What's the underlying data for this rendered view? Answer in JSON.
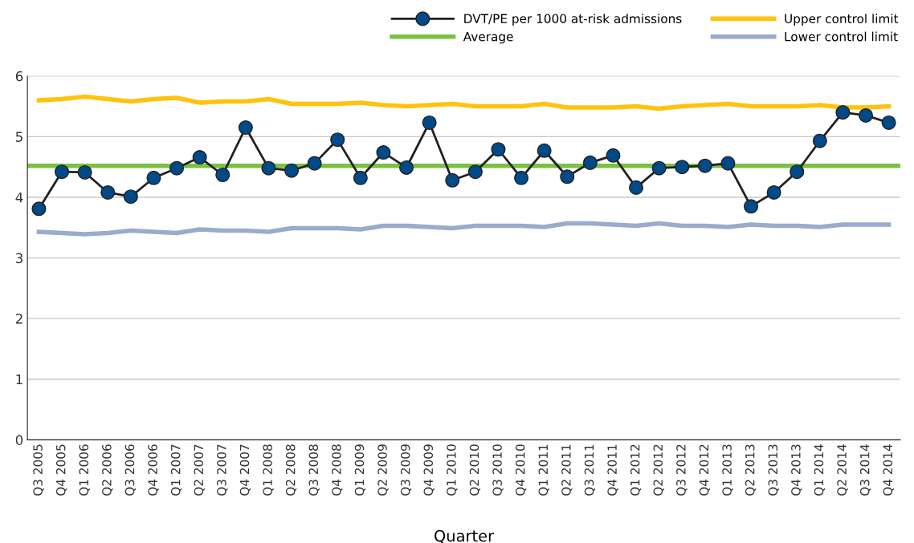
{
  "chart_data": {
    "type": "line",
    "xlabel": "Quarter",
    "categories": [
      "Q3 2005",
      "Q4 2005",
      "Q1 2006",
      "Q2 2006",
      "Q3 2006",
      "Q4 2006",
      "Q1 2007",
      "Q2 2007",
      "Q3 2007",
      "Q4 2007",
      "Q1 2008",
      "Q2 2008",
      "Q3 2008",
      "Q4 2008",
      "Q1 2009",
      "Q2 2009",
      "Q3 2009",
      "Q4 2009",
      "Q1 2010",
      "Q2 2010",
      "Q3 2010",
      "Q4 2010",
      "Q1 2011",
      "Q2 2011",
      "Q3 2011",
      "Q4 2011",
      "Q1 2012",
      "Q2 2012",
      "Q3 2012",
      "Q4 2012",
      "Q1 2013",
      "Q2 2013",
      "Q3 2013",
      "Q4 2013",
      "Q1 2014",
      "Q2 2014",
      "Q3 2014",
      "Q4 2014"
    ],
    "series": [
      {
        "name": "DVT/PE per 1000 at-risk admissions",
        "color": "#231f20",
        "marker": "circle",
        "values": [
          3.81,
          4.42,
          4.41,
          4.08,
          4.01,
          4.32,
          4.48,
          4.66,
          4.37,
          5.15,
          4.48,
          4.44,
          4.56,
          4.95,
          4.32,
          4.74,
          4.49,
          5.23,
          4.28,
          4.42,
          4.79,
          4.32,
          4.77,
          4.34,
          4.57,
          4.69,
          4.16,
          4.48,
          4.5,
          4.52,
          4.56,
          3.85,
          4.08,
          4.42,
          4.93,
          5.4,
          5.35,
          5.23
        ]
      },
      {
        "name": "Upper control limit",
        "color": "#ffc20e",
        "marker": "none",
        "values": [
          5.6,
          5.62,
          5.66,
          5.62,
          5.58,
          5.62,
          5.64,
          5.56,
          5.58,
          5.58,
          5.62,
          5.54,
          5.54,
          5.54,
          5.56,
          5.52,
          5.5,
          5.52,
          5.54,
          5.5,
          5.5,
          5.5,
          5.54,
          5.48,
          5.48,
          5.48,
          5.5,
          5.46,
          5.5,
          5.52,
          5.54,
          5.5,
          5.5,
          5.5,
          5.52,
          5.48,
          5.48,
          5.5
        ]
      },
      {
        "name": "Lower control limit",
        "color": "#9aabcb",
        "marker": "none",
        "values": [
          3.43,
          3.41,
          3.39,
          3.41,
          3.45,
          3.43,
          3.41,
          3.47,
          3.45,
          3.45,
          3.43,
          3.49,
          3.49,
          3.49,
          3.47,
          3.53,
          3.53,
          3.51,
          3.49,
          3.53,
          3.53,
          3.53,
          3.51,
          3.57,
          3.57,
          3.55,
          3.53,
          3.57,
          3.53,
          3.53,
          3.51,
          3.55,
          3.53,
          3.53,
          3.51,
          3.55,
          3.55,
          3.55
        ]
      }
    ],
    "ref_lines": [
      {
        "axis": "y",
        "value": 4.52,
        "label": "Average",
        "color": "#7ac143"
      }
    ],
    "ylim": [
      0,
      6
    ],
    "yticks": [
      0,
      1,
      2,
      3,
      4,
      5,
      6
    ],
    "grid": "y",
    "legend": "top right",
    "line_style": "solid"
  }
}
